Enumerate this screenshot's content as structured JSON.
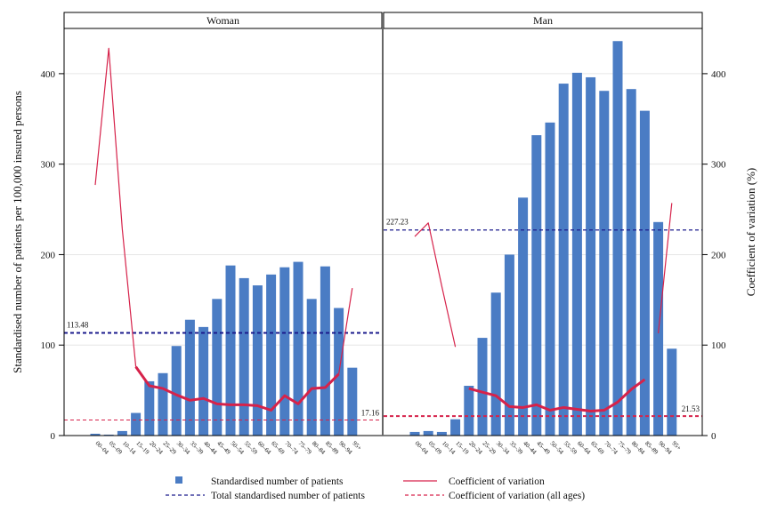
{
  "chart_data": {
    "type": "bar",
    "left_axis_label": "Standardised number of patients per 100,000 insured persons",
    "right_axis_label": "Coefficient of variation (%)",
    "ylim": [
      0,
      450
    ],
    "y_ticks": [
      0,
      100,
      200,
      300,
      400
    ],
    "categories": [
      "00–04",
      "05–09",
      "10–14",
      "15–19",
      "20–24",
      "25–29",
      "30–34",
      "35–39",
      "40–44",
      "45–49",
      "50–54",
      "55–59",
      "60–64",
      "65–69",
      "70–74",
      "75–79",
      "80–84",
      "85–89",
      "90–94",
      "95+"
    ],
    "panels": [
      {
        "name": "Woman",
        "patients": [
          2,
          1,
          5,
          25,
          60,
          69,
          99,
          128,
          120,
          151,
          188,
          174,
          166,
          178,
          186,
          192,
          151,
          187,
          141,
          75
        ],
        "cv_thin": [
          277,
          428,
          228,
          76,
          null,
          null,
          null,
          null,
          null,
          null,
          null,
          null,
          null,
          null,
          null,
          null,
          null,
          null,
          68,
          163
        ],
        "cv_thick": [
          null,
          null,
          null,
          76,
          55,
          52,
          45,
          39,
          41,
          35,
          34,
          34,
          33,
          28,
          44,
          35,
          52,
          53,
          68,
          null
        ],
        "total_patients": 113.48,
        "total_patients_label": "113.48",
        "cv_all": 17.16,
        "cv_all_label": "17.16"
      },
      {
        "name": "Man",
        "patients": [
          4,
          5,
          4,
          18,
          55,
          108,
          158,
          200,
          263,
          332,
          346,
          389,
          401,
          396,
          381,
          436,
          383,
          359,
          236,
          96
        ],
        "cv_thin": [
          220,
          235,
          165,
          98,
          null,
          null,
          null,
          null,
          null,
          null,
          null,
          null,
          null,
          null,
          null,
          null,
          null,
          null,
          113,
          257
        ],
        "cv_thick": [
          null,
          null,
          null,
          null,
          52,
          48,
          44,
          32,
          31,
          34,
          28,
          31,
          29,
          27,
          28,
          37,
          51,
          62,
          null,
          null
        ],
        "total_patients": 227.23,
        "total_patients_label": "227.23",
        "cv_all": 21.53,
        "cv_all_label": "21.53"
      }
    ],
    "legend": [
      {
        "label": "Standardised number of patients",
        "style": "bar",
        "color": "#4a7cc4"
      },
      {
        "label": "Coefficient of variation",
        "style": "line",
        "color": "#d6224a"
      },
      {
        "label": "Total standardised number of patients",
        "style": "dashed",
        "color": "#1a1a8c"
      },
      {
        "label": "Coefficient of variation (all ages)",
        "style": "dashed",
        "color": "#d6224a"
      }
    ],
    "colors": {
      "bar": "#4a7cc4",
      "cv": "#d6224a",
      "total": "#1a1a8c",
      "grid": "#e6e6e6"
    }
  }
}
